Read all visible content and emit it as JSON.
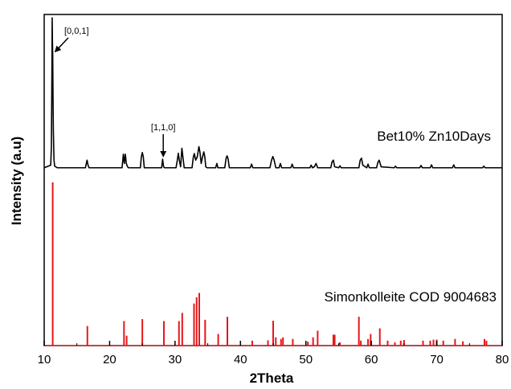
{
  "chart_data": {
    "type": "line",
    "xlabel": "2Theta",
    "ylabel": "Intensity (a.u)",
    "xlim": [
      10,
      80
    ],
    "ylim": [
      0,
      100
    ],
    "x_ticks": [
      10,
      20,
      30,
      40,
      50,
      60,
      70,
      80
    ],
    "grid": false,
    "legend": "none",
    "series": [
      {
        "name": "Bet10% Zn10Days",
        "kind": "pattern",
        "color": "#000000",
        "baseline": 53.7,
        "x": [
          10,
          11.0,
          11.1,
          11.2,
          11.22,
          11.26,
          11.3,
          11.35,
          11.4,
          11.5,
          11.6,
          12.0,
          16.3,
          16.55,
          16.7,
          16.85,
          17.1,
          21.9,
          22.1,
          22.25,
          22.4,
          22.55,
          22.75,
          22.9,
          24.7,
          24.85,
          25.0,
          25.15,
          25.3,
          27.95,
          28.1,
          28.25,
          28.4,
          30.15,
          30.35,
          30.5,
          30.65,
          30.85,
          31.05,
          31.2,
          31.4,
          32.6,
          32.8,
          32.95,
          33.15,
          33.4,
          33.65,
          33.8,
          34.0,
          34.2,
          34.4,
          34.55,
          34.7,
          34.9,
          36.2,
          36.4,
          36.55,
          37.6,
          37.8,
          37.95,
          38.1,
          38.3,
          41.5,
          41.7,
          41.9,
          44.5,
          44.75,
          44.95,
          45.15,
          45.4,
          45.9,
          46.1,
          46.3,
          47.7,
          47.9,
          48.1,
          50.6,
          50.8,
          51.0,
          51.3,
          51.55,
          51.8,
          53.8,
          54.0,
          54.2,
          54.4,
          55.0,
          55.2,
          55.4,
          58.1,
          58.3,
          58.5,
          58.7,
          59.3,
          59.5,
          59.7,
          60.8,
          61.0,
          61.2,
          61.5,
          63.5,
          63.7,
          63.9,
          67.4,
          67.6,
          67.8,
          69.0,
          69.2,
          69.4,
          72.4,
          72.6,
          72.8,
          77.0,
          77.2,
          77.4,
          80
        ],
        "y": [
          53.7,
          54.5,
          60.0,
          88.0,
          99.0,
          92.0,
          88.0,
          75.0,
          65.0,
          56.0,
          54.2,
          53.7,
          53.7,
          56.0,
          54.5,
          53.7,
          53.7,
          53.7,
          57.8,
          55.0,
          57.8,
          55.0,
          54.0,
          53.7,
          53.7,
          57.0,
          58.3,
          57.0,
          53.7,
          53.7,
          56.3,
          54.0,
          53.7,
          53.7,
          56.0,
          58.1,
          56.0,
          54.0,
          59.6,
          57.0,
          53.7,
          53.7,
          57.0,
          58.0,
          56.0,
          57.0,
          60.1,
          58.5,
          55.0,
          57.0,
          58.5,
          57.0,
          54.0,
          53.7,
          53.7,
          55.0,
          53.7,
          53.7,
          56.5,
          57.3,
          56.5,
          53.7,
          53.7,
          54.8,
          53.7,
          53.7,
          56.0,
          57.1,
          56.0,
          53.7,
          53.7,
          55.0,
          53.7,
          53.7,
          54.8,
          53.7,
          53.7,
          54.5,
          53.7,
          54.0,
          55.0,
          53.7,
          53.7,
          55.5,
          56.0,
          54.0,
          53.7,
          54.3,
          53.7,
          53.7,
          56.0,
          56.6,
          54.5,
          53.7,
          54.8,
          53.7,
          53.7,
          55.3,
          56.0,
          54.0,
          53.7,
          54.2,
          53.7,
          53.7,
          54.4,
          53.7,
          53.7,
          54.6,
          53.7,
          53.7,
          54.6,
          53.7,
          53.7,
          54.2,
          53.7,
          53.7
        ]
      },
      {
        "name": "Simonkolleite COD 9004683",
        "kind": "sticks",
        "color": "#e8151a",
        "baseline": 0,
        "x": [
          11.3,
          16.6,
          22.2,
          22.6,
          25.0,
          28.3,
          30.6,
          31.1,
          32.9,
          33.3,
          33.7,
          34.6,
          36.6,
          38.0,
          41.8,
          44.2,
          45.0,
          45.4,
          46.2,
          46.5,
          48.0,
          50.3,
          51.1,
          51.8,
          54.2,
          54.4,
          55.2,
          58.1,
          58.4,
          59.5,
          59.9,
          61.3,
          62.5,
          63.6,
          64.5,
          65.0,
          67.9,
          69.0,
          69.5,
          70.0,
          71.0,
          72.8,
          74.0,
          77.3,
          77.6
        ],
        "y": [
          49.3,
          5.9,
          7.4,
          3.0,
          8.0,
          7.4,
          7.4,
          9.9,
          12.7,
          14.6,
          15.9,
          7.8,
          3.5,
          8.7,
          1.5,
          1.6,
          7.5,
          2.5,
          2.0,
          2.5,
          2.0,
          1.2,
          2.5,
          4.5,
          3.3,
          3.3,
          1.0,
          8.7,
          1.5,
          2.0,
          3.5,
          5.2,
          1.5,
          1.0,
          1.5,
          1.7,
          1.5,
          1.5,
          1.8,
          1.8,
          1.5,
          2.0,
          1.3,
          2.0,
          1.5
        ]
      }
    ],
    "annotations": [
      {
        "text": "[0,0,1]",
        "x": 11.3,
        "y": 88.0
      },
      {
        "text": "[1,1,0]",
        "x": 28.2,
        "y": 56.6
      }
    ]
  }
}
